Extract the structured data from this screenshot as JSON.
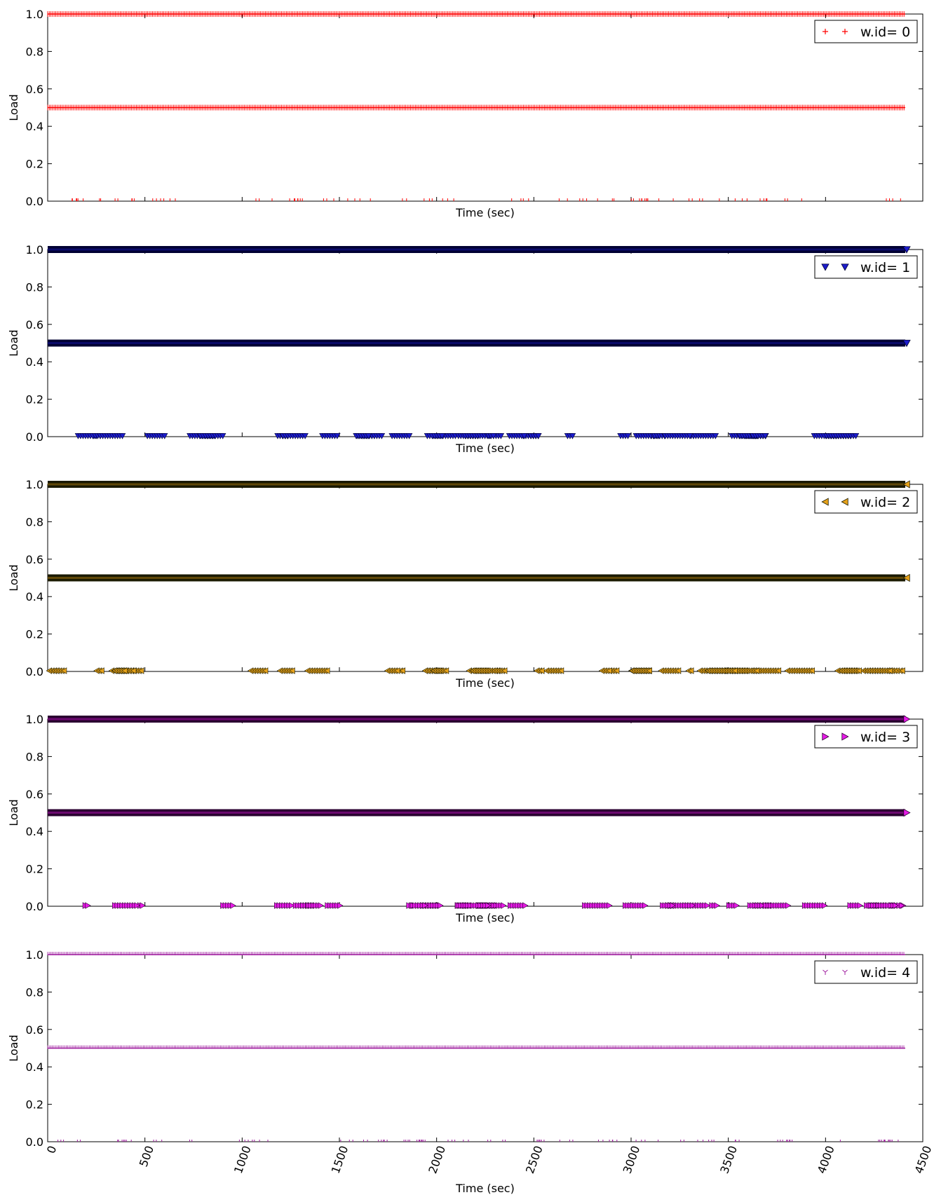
{
  "figure": {
    "colors": {
      "frame": "#000000",
      "legend_border": "#000000",
      "background": "#ffffff"
    }
  },
  "chart_data": [
    {
      "type": "scatter",
      "title": "",
      "xlabel": "Time (sec)",
      "ylabel": "Load",
      "xlim": [
        0,
        4500
      ],
      "ylim": [
        0.0,
        1.0
      ],
      "x_ticks": [],
      "x_tick_labels_shown": false,
      "y_ticks": [
        "0.0",
        "0.2",
        "0.4",
        "0.6",
        "0.8",
        "1.0"
      ],
      "grid": false,
      "legend_position": "top-right",
      "series": [
        {
          "name": "w.id= 0",
          "marker": "plus",
          "marker_icon": "plus-marker-icon",
          "color": "#ff0000",
          "edge": "#ff0000",
          "levels": [
            {
              "y": 1.0,
              "x_range": [
                0,
                4410
              ],
              "pattern": "continuous"
            },
            {
              "y": 0.5,
              "x_range": [
                0,
                4410
              ],
              "pattern": "continuous"
            },
            {
              "y": 0.0,
              "x_range": [
                0,
                4400
              ],
              "pattern": "sparse"
            }
          ]
        }
      ]
    },
    {
      "type": "scatter",
      "title": "",
      "xlabel": "Time (sec)",
      "ylabel": "Load",
      "xlim": [
        0,
        4500
      ],
      "ylim": [
        0.0,
        1.0
      ],
      "x_ticks": [],
      "x_tick_labels_shown": false,
      "y_ticks": [
        "0.0",
        "0.2",
        "0.4",
        "0.6",
        "0.8",
        "1.0"
      ],
      "grid": false,
      "legend_position": "top-right",
      "series": [
        {
          "name": "w.id= 1",
          "marker": "triangle_down",
          "marker_icon": "triangle-down-marker-icon",
          "color": "#1c1ccc",
          "edge": "#000033",
          "levels": [
            {
              "y": 1.0,
              "x_range": [
                0,
                4410
              ],
              "pattern": "continuous"
            },
            {
              "y": 0.5,
              "x_range": [
                0,
                4410
              ],
              "pattern": "continuous"
            },
            {
              "y": 0.0,
              "x_range": [
                0,
                4400
              ],
              "pattern": "clustered"
            }
          ]
        }
      ]
    },
    {
      "type": "scatter",
      "title": "",
      "xlabel": "Time (sec)",
      "ylabel": "Load",
      "xlim": [
        0,
        4500
      ],
      "ylim": [
        0.0,
        1.0
      ],
      "x_ticks": [],
      "x_tick_labels_shown": false,
      "y_ticks": [
        "0.0",
        "0.2",
        "0.4",
        "0.6",
        "0.8",
        "1.0"
      ],
      "grid": false,
      "legend_position": "top-right",
      "series": [
        {
          "name": "w.id= 2",
          "marker": "triangle_left",
          "marker_icon": "triangle-left-marker-icon",
          "color": "#e5a11a",
          "edge": "#1a1a00",
          "levels": [
            {
              "y": 1.0,
              "x_range": [
                0,
                4410
              ],
              "pattern": "continuous"
            },
            {
              "y": 0.5,
              "x_range": [
                0,
                4410
              ],
              "pattern": "continuous"
            },
            {
              "y": 0.0,
              "x_range": [
                0,
                4400
              ],
              "pattern": "clustered"
            }
          ]
        }
      ]
    },
    {
      "type": "scatter",
      "title": "",
      "xlabel": "Time (sec)",
      "ylabel": "Load",
      "xlim": [
        0,
        4500
      ],
      "ylim": [
        0.0,
        1.0
      ],
      "x_ticks": [],
      "x_tick_labels_shown": false,
      "y_ticks": [
        "0.0",
        "0.2",
        "0.4",
        "0.6",
        "0.8",
        "1.0"
      ],
      "grid": false,
      "legend_position": "top-right",
      "series": [
        {
          "name": "w.id= 3",
          "marker": "triangle_right",
          "marker_icon": "triangle-right-marker-icon",
          "color": "#e61ae6",
          "edge": "#2a0030",
          "levels": [
            {
              "y": 1.0,
              "x_range": [
                0,
                4410
              ],
              "pattern": "continuous"
            },
            {
              "y": 0.5,
              "x_range": [
                0,
                4410
              ],
              "pattern": "continuous"
            },
            {
              "y": 0.0,
              "x_range": [
                0,
                4400
              ],
              "pattern": "clustered"
            }
          ]
        }
      ]
    },
    {
      "type": "scatter",
      "title": "",
      "xlabel": "Time (sec)",
      "ylabel": "Load",
      "xlim": [
        0,
        4500
      ],
      "ylim": [
        0.0,
        1.0
      ],
      "x_ticks": [
        "0",
        "500",
        "1000",
        "1500",
        "2000",
        "2500",
        "3000",
        "3500",
        "4000",
        "4500"
      ],
      "x_tick_labels_shown": true,
      "x_tick_rotation_deg": 70,
      "y_ticks": [
        "0.0",
        "0.2",
        "0.4",
        "0.6",
        "0.8",
        "1.0"
      ],
      "grid": false,
      "legend_position": "top-right",
      "series": [
        {
          "name": "w.id= 4",
          "marker": "tri_down",
          "marker_icon": "tri-down-marker-icon",
          "color": "#a020a0",
          "edge": "#a020a0",
          "levels": [
            {
              "y": 1.0,
              "x_range": [
                0,
                4410
              ],
              "pattern": "continuous"
            },
            {
              "y": 0.5,
              "x_range": [
                0,
                4410
              ],
              "pattern": "continuous"
            },
            {
              "y": 0.0,
              "x_range": [
                0,
                4400
              ],
              "pattern": "sparse"
            }
          ]
        }
      ]
    }
  ]
}
